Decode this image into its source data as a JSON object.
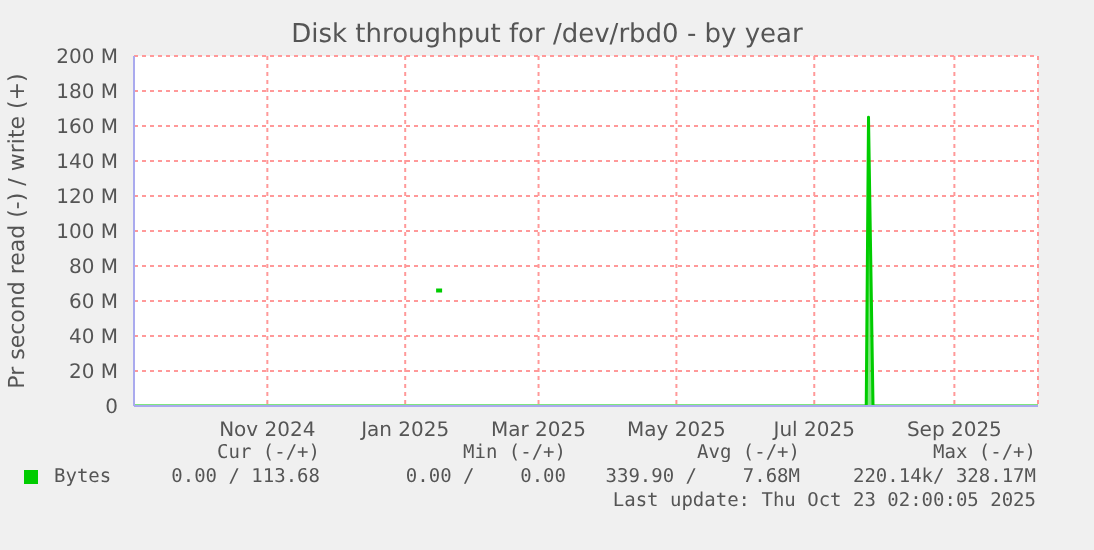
{
  "chart_data": {
    "type": "area",
    "title": "Disk throughput for /dev/rbd0 - by year",
    "ylabel": "Pr second read (-) / write (+)",
    "xlim": [
      "2024-09-18",
      "2025-10-23"
    ],
    "xticks": [
      {
        "value": "2024-11-16",
        "label": "Nov 2024"
      },
      {
        "value": "2025-01-16",
        "label": "Jan 2025"
      },
      {
        "value": "2025-03-16",
        "label": "Mar 2025"
      },
      {
        "value": "2025-05-16",
        "label": "May 2025"
      },
      {
        "value": "2025-07-16",
        "label": "Jul 2025"
      },
      {
        "value": "2025-09-16",
        "label": "Sep 2025"
      }
    ],
    "ylim": [
      0,
      200
    ],
    "yticks": [
      {
        "value": 0,
        "label": "0"
      },
      {
        "value": 20,
        "label": "20 M"
      },
      {
        "value": 40,
        "label": "40 M"
      },
      {
        "value": 60,
        "label": "60 M"
      },
      {
        "value": 80,
        "label": "80 M"
      },
      {
        "value": 100,
        "label": "100 M"
      },
      {
        "value": 120,
        "label": "120 M"
      },
      {
        "value": 140,
        "label": "140 M"
      },
      {
        "value": 160,
        "label": "160 M"
      },
      {
        "value": 180,
        "label": "180 M"
      },
      {
        "value": 200,
        "label": "200 M"
      }
    ],
    "grid": true,
    "legend": "bottom left",
    "series": [
      {
        "name": "Bytes",
        "color": "#00cc00",
        "x": [
          "2024-09-18",
          "2025-08-08",
          "2025-08-09",
          "2025-08-11",
          "2025-10-23"
        ],
        "values": [
          0,
          0,
          165,
          0,
          0
        ]
      },
      {
        "type": "scatter",
        "marker": "square",
        "color": "#00cc00",
        "x": [
          "2025-01-31"
        ],
        "values": [
          66
        ]
      }
    ],
    "annotations": [
      "Cur (-/+)",
      "Min (-/+)",
      "Avg (-/+)",
      "Max (-/+)",
      "0.00 / 113.68",
      "0.00 /    0.00",
      "339.90 /    7.68M",
      "220.14k/ 328.17M",
      "Last update: Thu Oct 23 02:00:05 2025"
    ]
  }
}
